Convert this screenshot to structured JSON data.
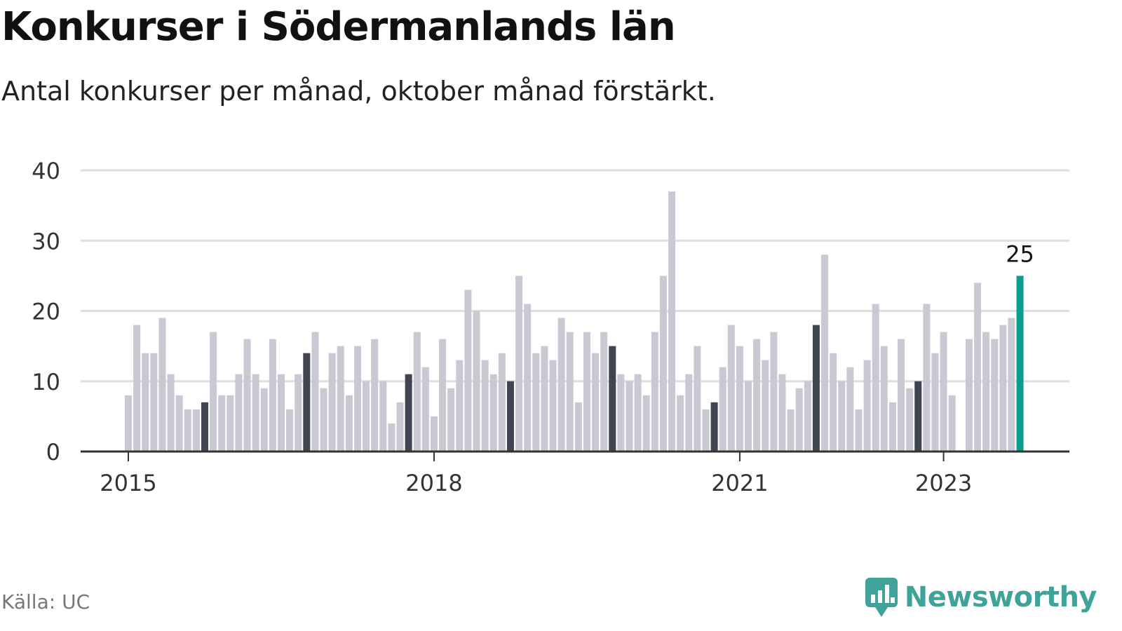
{
  "header": {
    "title": "Konkurser i Södermanlands län",
    "subtitle": "Antal konkurser per månad, oktober månad förstärkt."
  },
  "footer": {
    "source": "Källa: UC",
    "brand": "Newsworthy",
    "brand_icon": "newsworthy-logo-icon"
  },
  "colors": {
    "bar": "#c9c8d3",
    "highlight": "#414451",
    "latest": "#0b9d8f",
    "gridline": "#dedede",
    "axis": "#333333",
    "brand": "#3fa39a"
  },
  "chart_data": {
    "type": "bar",
    "x_start": "2015-01",
    "x_ticks": [
      "2015",
      "2018",
      "2021",
      "2023"
    ],
    "y_ticks": [
      0,
      10,
      20,
      30,
      40
    ],
    "ylim": [
      0,
      40
    ],
    "grid": true,
    "highlight_month": "October",
    "latest_label": "25",
    "values": [
      8,
      18,
      14,
      14,
      19,
      11,
      8,
      6,
      6,
      7,
      17,
      8,
      8,
      11,
      16,
      11,
      9,
      16,
      11,
      6,
      11,
      14,
      17,
      9,
      14,
      15,
      8,
      15,
      10,
      16,
      10,
      4,
      7,
      11,
      17,
      12,
      5,
      16,
      9,
      13,
      23,
      20,
      13,
      11,
      14,
      10,
      25,
      21,
      14,
      15,
      13,
      19,
      17,
      7,
      17,
      14,
      17,
      15,
      11,
      10,
      11,
      8,
      17,
      25,
      37,
      8,
      11,
      15,
      6,
      7,
      12,
      18,
      15,
      10,
      16,
      13,
      17,
      11,
      6,
      9,
      10,
      18,
      28,
      14,
      10,
      12,
      6,
      13,
      21,
      15,
      7,
      16,
      9,
      10,
      21,
      14,
      17,
      8,
      0,
      16,
      24,
      17,
      16,
      18,
      19,
      25
    ]
  }
}
